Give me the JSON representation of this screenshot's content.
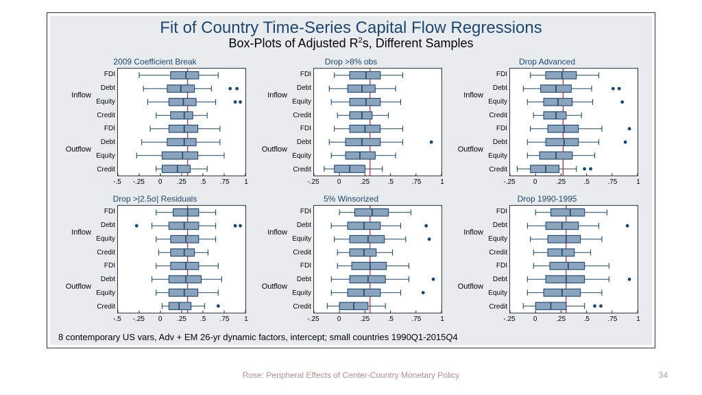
{
  "title_main": "Fit of Country Time-Series Capital Flow Regressions",
  "title_sub_pre": "Box-Plots of Adjusted R",
  "title_sub_sup": "2",
  "title_sub_post": "s, Different Samples",
  "footnote": "8 contemporary US vars, Adv + EM 26-yr dynamic factors, intercept; small countries 1990Q1-2015Q4",
  "footer_caption": "Rose: Peripheral Effects of Center-Country Monetary Policy",
  "page_num": "34",
  "group_labels": [
    "Inflow",
    "Outflow"
  ],
  "cat_labels": [
    "FDI",
    "Debt",
    "Equity",
    "Credit"
  ],
  "colors": {
    "bg_panel": "#e8ecef",
    "title": "#1f466e",
    "box_fill": "#8aa4bd",
    "box_stroke": "#1f466e",
    "whisker": "#1f466e",
    "median": "#ffffff",
    "ref_line": "#cc0033",
    "outlier": "#1f466e",
    "plot_bg": "#ffffff"
  },
  "panels": [
    {
      "title": "2009 Coefficient Break",
      "xmin": -0.5,
      "xmax": 1.0,
      "xticks": [
        -0.5,
        -0.25,
        0,
        0.25,
        0.5,
        0.75,
        1.0
      ],
      "xtick_labels": [
        "-.5",
        "-.25",
        "0",
        ".25",
        ".5",
        ".75",
        "1"
      ],
      "ref": 0.32,
      "rows": [
        {
          "lw": -0.25,
          "q1": 0.12,
          "med": 0.3,
          "q3": 0.45,
          "uw": 0.68,
          "out": []
        },
        {
          "lw": -0.2,
          "q1": 0.08,
          "med": 0.24,
          "q3": 0.4,
          "uw": 0.6,
          "out": [
            0.82,
            0.9
          ]
        },
        {
          "lw": -0.15,
          "q1": 0.1,
          "med": 0.27,
          "q3": 0.42,
          "uw": 0.65,
          "out": [
            0.88,
            0.94
          ]
        },
        {
          "lw": -0.05,
          "q1": 0.12,
          "med": 0.28,
          "q3": 0.38,
          "uw": 0.55,
          "out": []
        },
        {
          "lw": -0.12,
          "q1": 0.1,
          "med": 0.28,
          "q3": 0.44,
          "uw": 0.7,
          "out": []
        },
        {
          "lw": -0.22,
          "q1": 0.08,
          "med": 0.28,
          "q3": 0.42,
          "uw": 0.7,
          "out": []
        },
        {
          "lw": -0.28,
          "q1": 0.02,
          "med": 0.26,
          "q3": 0.44,
          "uw": 0.75,
          "out": []
        },
        {
          "lw": -0.05,
          "q1": 0.02,
          "med": 0.2,
          "q3": 0.35,
          "uw": 0.55,
          "out": []
        }
      ]
    },
    {
      "title": "Drop >8% obs",
      "xmin": -0.25,
      "xmax": 1.0,
      "xticks": [
        -0.25,
        0,
        0.25,
        0.5,
        0.75,
        1.0
      ],
      "xtick_labels": [
        "-.25",
        "0",
        ".25",
        ".5",
        ".75",
        "1"
      ],
      "ref": 0.3,
      "rows": [
        {
          "lw": -0.05,
          "q1": 0.1,
          "med": 0.26,
          "q3": 0.4,
          "uw": 0.62,
          "out": []
        },
        {
          "lw": -0.1,
          "q1": 0.08,
          "med": 0.22,
          "q3": 0.35,
          "uw": 0.55,
          "out": []
        },
        {
          "lw": -0.08,
          "q1": 0.1,
          "med": 0.26,
          "q3": 0.4,
          "uw": 0.6,
          "out": []
        },
        {
          "lw": -0.02,
          "q1": 0.1,
          "med": 0.22,
          "q3": 0.32,
          "uw": 0.48,
          "out": []
        },
        {
          "lw": -0.05,
          "q1": 0.1,
          "med": 0.25,
          "q3": 0.4,
          "uw": 0.62,
          "out": []
        },
        {
          "lw": -0.1,
          "q1": 0.06,
          "med": 0.22,
          "q3": 0.4,
          "uw": 0.62,
          "out": [
            0.9
          ]
        },
        {
          "lw": -0.08,
          "q1": 0.06,
          "med": 0.2,
          "q3": 0.35,
          "uw": 0.55,
          "out": []
        },
        {
          "lw": -0.15,
          "q1": -0.05,
          "med": 0.1,
          "q3": 0.25,
          "uw": 0.42,
          "out": []
        }
      ]
    },
    {
      "title": "Drop Advanced",
      "xmin": -0.25,
      "xmax": 1.0,
      "xticks": [
        -0.25,
        0,
        0.25,
        0.5,
        0.75,
        1.0
      ],
      "xtick_labels": [
        "-.25",
        "0",
        ".25",
        ".5",
        ".75",
        "1"
      ],
      "ref": 0.27,
      "rows": [
        {
          "lw": -0.05,
          "q1": 0.1,
          "med": 0.26,
          "q3": 0.4,
          "uw": 0.62,
          "out": []
        },
        {
          "lw": -0.12,
          "q1": 0.05,
          "med": 0.2,
          "q3": 0.35,
          "uw": 0.55,
          "out": [
            0.76,
            0.82
          ]
        },
        {
          "lw": -0.08,
          "q1": 0.08,
          "med": 0.22,
          "q3": 0.36,
          "uw": 0.56,
          "out": [
            0.85
          ]
        },
        {
          "lw": -0.02,
          "q1": 0.08,
          "med": 0.2,
          "q3": 0.3,
          "uw": 0.45,
          "out": []
        },
        {
          "lw": -0.05,
          "q1": 0.12,
          "med": 0.28,
          "q3": 0.42,
          "uw": 0.65,
          "out": [
            0.92
          ]
        },
        {
          "lw": -0.08,
          "q1": 0.1,
          "med": 0.28,
          "q3": 0.42,
          "uw": 0.62,
          "out": [
            0.88
          ]
        },
        {
          "lw": -0.08,
          "q1": 0.04,
          "med": 0.2,
          "q3": 0.36,
          "uw": 0.58,
          "out": []
        },
        {
          "lw": -0.18,
          "q1": -0.05,
          "med": 0.1,
          "q3": 0.23,
          "uw": 0.4,
          "out": [
            0.48,
            0.54
          ]
        }
      ]
    },
    {
      "title": "Drop >|2.5σ| Residuals",
      "xmin": -0.5,
      "xmax": 1.0,
      "xticks": [
        -0.5,
        -0.25,
        0,
        0.25,
        0.5,
        0.75,
        1.0
      ],
      "xtick_labels": [
        "-.5",
        "-.25",
        "0",
        ".25",
        ".5",
        ".75",
        "1"
      ],
      "ref": 0.32,
      "rows": [
        {
          "lw": -0.05,
          "q1": 0.15,
          "med": 0.32,
          "q3": 0.45,
          "uw": 0.65,
          "out": []
        },
        {
          "lw": -0.1,
          "q1": 0.1,
          "med": 0.28,
          "q3": 0.45,
          "uw": 0.65,
          "out": [
            -0.28,
            0.88,
            0.94
          ]
        },
        {
          "lw": -0.05,
          "q1": 0.12,
          "med": 0.3,
          "q3": 0.45,
          "uw": 0.65,
          "out": []
        },
        {
          "lw": -0.02,
          "q1": 0.12,
          "med": 0.28,
          "q3": 0.4,
          "uw": 0.56,
          "out": []
        },
        {
          "lw": -0.05,
          "q1": 0.12,
          "med": 0.3,
          "q3": 0.45,
          "uw": 0.68,
          "out": []
        },
        {
          "lw": -0.1,
          "q1": 0.1,
          "med": 0.3,
          "q3": 0.48,
          "uw": 0.72,
          "out": []
        },
        {
          "lw": -0.05,
          "q1": 0.1,
          "med": 0.28,
          "q3": 0.44,
          "uw": 0.68,
          "out": []
        },
        {
          "lw": 0.02,
          "q1": 0.1,
          "med": 0.22,
          "q3": 0.36,
          "uw": 0.52,
          "out": [
            0.68
          ]
        }
      ]
    },
    {
      "title": "5% Winsorized",
      "xmin": -0.25,
      "xmax": 1.0,
      "xticks": [
        -0.25,
        0,
        0.25,
        0.5,
        0.75,
        1.0
      ],
      "xtick_labels": [
        "-.25",
        "0",
        ".25",
        ".5",
        ".75",
        "1"
      ],
      "ref": 0.3,
      "rows": [
        {
          "lw": 0.0,
          "q1": 0.15,
          "med": 0.32,
          "q3": 0.48,
          "uw": 0.7,
          "out": []
        },
        {
          "lw": -0.08,
          "q1": 0.08,
          "med": 0.24,
          "q3": 0.4,
          "uw": 0.6,
          "out": [
            0.85
          ]
        },
        {
          "lw": -0.05,
          "q1": 0.1,
          "med": 0.28,
          "q3": 0.44,
          "uw": 0.65,
          "out": [
            0.88
          ]
        },
        {
          "lw": -0.02,
          "q1": 0.1,
          "med": 0.24,
          "q3": 0.36,
          "uw": 0.52,
          "out": []
        },
        {
          "lw": -0.02,
          "q1": 0.12,
          "med": 0.3,
          "q3": 0.46,
          "uw": 0.68,
          "out": []
        },
        {
          "lw": -0.08,
          "q1": 0.1,
          "med": 0.28,
          "q3": 0.45,
          "uw": 0.68,
          "out": [
            0.92
          ]
        },
        {
          "lw": -0.08,
          "q1": 0.08,
          "med": 0.24,
          "q3": 0.4,
          "uw": 0.6,
          "out": [
            0.82
          ]
        },
        {
          "lw": -0.12,
          "q1": 0.0,
          "med": 0.14,
          "q3": 0.28,
          "uw": 0.45,
          "out": []
        }
      ]
    },
    {
      "title": "Drop 1990-1995",
      "xmin": -0.25,
      "xmax": 1.0,
      "xticks": [
        -0.25,
        0,
        0.25,
        0.5,
        0.75,
        1.0
      ],
      "xtick_labels": [
        "-.25",
        "0",
        ".25",
        ".5",
        ".75",
        "1"
      ],
      "ref": 0.3,
      "rows": [
        {
          "lw": 0.0,
          "q1": 0.15,
          "med": 0.34,
          "q3": 0.48,
          "uw": 0.7,
          "out": []
        },
        {
          "lw": -0.08,
          "q1": 0.1,
          "med": 0.26,
          "q3": 0.42,
          "uw": 0.62,
          "out": [
            0.9
          ]
        },
        {
          "lw": -0.05,
          "q1": 0.12,
          "med": 0.3,
          "q3": 0.44,
          "uw": 0.65,
          "out": []
        },
        {
          "lw": -0.02,
          "q1": 0.12,
          "med": 0.26,
          "q3": 0.38,
          "uw": 0.54,
          "out": []
        },
        {
          "lw": -0.02,
          "q1": 0.14,
          "med": 0.32,
          "q3": 0.48,
          "uw": 0.72,
          "out": []
        },
        {
          "lw": -0.08,
          "q1": 0.1,
          "med": 0.3,
          "q3": 0.48,
          "uw": 0.72,
          "out": [
            0.92
          ]
        },
        {
          "lw": -0.08,
          "q1": 0.08,
          "med": 0.26,
          "q3": 0.44,
          "uw": 0.65,
          "out": []
        },
        {
          "lw": -0.12,
          "q1": 0.0,
          "med": 0.15,
          "q3": 0.3,
          "uw": 0.48,
          "out": [
            0.58,
            0.64
          ]
        }
      ]
    }
  ]
}
